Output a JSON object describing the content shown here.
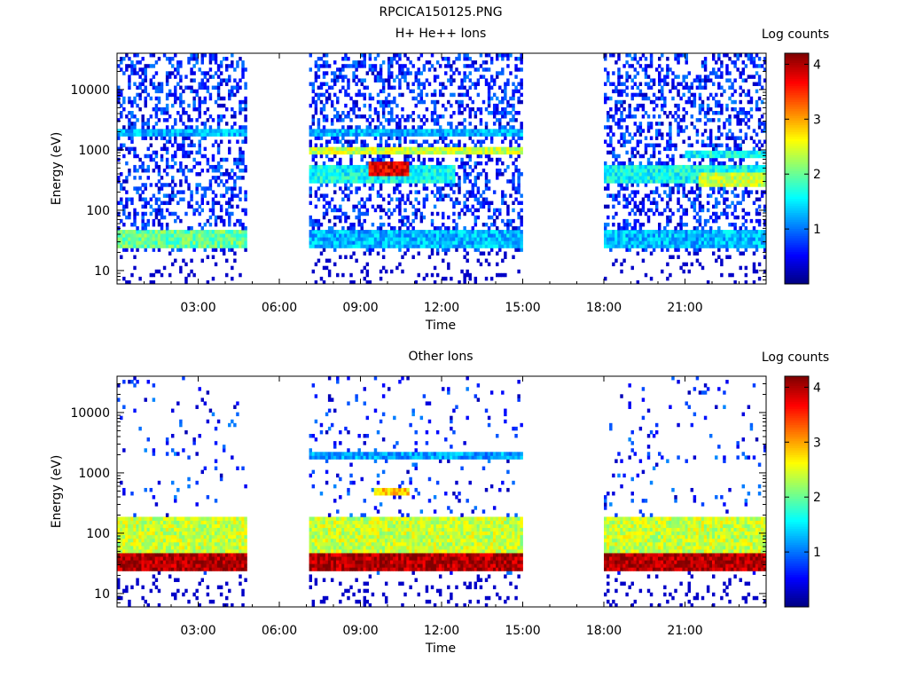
{
  "page_title": "RPCICA150125.PNG",
  "colorbar_stops": [
    "#00007f",
    "#0000ff",
    "#007fff",
    "#00ffff",
    "#7fff7f",
    "#ffff00",
    "#ff7f00",
    "#ff0000",
    "#7f0000"
  ],
  "chart_data": [
    {
      "type": "heatmap",
      "title": "H+ He++ Ions",
      "xlabel": "Time",
      "ylabel": "Energy (eV)",
      "yscale": "log",
      "xlim_hours": [
        0,
        24
      ],
      "ylim": [
        6,
        40000
      ],
      "x_ticks": [
        {
          "hour": 3,
          "label": "03:00"
        },
        {
          "hour": 6,
          "label": "06:00"
        },
        {
          "hour": 9,
          "label": "09:00"
        },
        {
          "hour": 12,
          "label": "12:00"
        },
        {
          "hour": 15,
          "label": "15:00"
        },
        {
          "hour": 18,
          "label": "18:00"
        },
        {
          "hour": 21,
          "label": "21:00"
        }
      ],
      "y_ticks": [
        {
          "value": 10,
          "label": "10"
        },
        {
          "value": 100,
          "label": "100"
        },
        {
          "value": 1000,
          "label": "1000"
        },
        {
          "value": 10000,
          "label": "10000"
        }
      ],
      "colorbar_label": "Log counts",
      "colorbar_ticks": [
        1,
        2,
        3,
        4
      ],
      "colorbar_range": [
        0,
        4.2
      ],
      "data_intervals_hours": [
        [
          0,
          4.8
        ],
        [
          7.1,
          15
        ],
        [
          18,
          24
        ]
      ],
      "features": [
        {
          "desc": "low-energy band",
          "energy_ev": [
            25,
            45
          ],
          "log_counts": 2.0,
          "intervals": [
            [
              0,
              4.8
            ]
          ]
        },
        {
          "desc": "low-energy band",
          "energy_ev": [
            25,
            45
          ],
          "log_counts": 1.3,
          "intervals": [
            [
              7.1,
              15
            ],
            [
              18,
              24
            ]
          ]
        },
        {
          "desc": "band",
          "energy_ev": [
            1800,
            2300
          ],
          "log_counts": 1.3,
          "intervals": [
            [
              0,
              4.8
            ],
            [
              7.1,
              15
            ]
          ]
        },
        {
          "desc": "band",
          "energy_ev": [
            800,
            1100
          ],
          "log_counts": 2.4,
          "intervals": [
            [
              7.1,
              15
            ]
          ]
        },
        {
          "desc": "peak",
          "energy_ev": [
            350,
            650
          ],
          "log_counts": 3.8,
          "intervals": [
            [
              9.3,
              10.8
            ]
          ]
        },
        {
          "desc": "band",
          "energy_ev": [
            300,
            600
          ],
          "log_counts": 1.6,
          "intervals": [
            [
              7.1,
              12.5
            ],
            [
              18,
              24
            ]
          ]
        },
        {
          "desc": "band",
          "energy_ev": [
            250,
            450
          ],
          "log_counts": 2.4,
          "intervals": [
            [
              21.5,
              24
            ]
          ]
        },
        {
          "desc": "band",
          "energy_ev": [
            750,
            1000
          ],
          "log_counts": 1.6,
          "intervals": [
            [
              21,
              24
            ]
          ]
        }
      ]
    },
    {
      "type": "heatmap",
      "title": "Other Ions",
      "xlabel": "Time",
      "ylabel": "Energy (eV)",
      "yscale": "log",
      "xlim_hours": [
        0,
        24
      ],
      "ylim": [
        6,
        40000
      ],
      "x_ticks": [
        {
          "hour": 3,
          "label": "03:00"
        },
        {
          "hour": 6,
          "label": "06:00"
        },
        {
          "hour": 9,
          "label": "09:00"
        },
        {
          "hour": 12,
          "label": "12:00"
        },
        {
          "hour": 15,
          "label": "15:00"
        },
        {
          "hour": 18,
          "label": "18:00"
        },
        {
          "hour": 21,
          "label": "21:00"
        }
      ],
      "y_ticks": [
        {
          "value": 10,
          "label": "10"
        },
        {
          "value": 100,
          "label": "100"
        },
        {
          "value": 1000,
          "label": "1000"
        },
        {
          "value": 10000,
          "label": "10000"
        }
      ],
      "colorbar_label": "Log counts",
      "colorbar_ticks": [
        1,
        2,
        3,
        4
      ],
      "colorbar_range": [
        0,
        4.2
      ],
      "data_intervals_hours": [
        [
          0,
          4.8
        ],
        [
          7.1,
          15
        ],
        [
          18,
          24
        ]
      ],
      "features": [
        {
          "desc": "main band",
          "energy_ev": [
            25,
            45
          ],
          "log_counts": 4.0,
          "intervals": [
            [
              0,
              4.8
            ],
            [
              7.1,
              15
            ],
            [
              18,
              24
            ]
          ]
        },
        {
          "desc": "broad band",
          "energy_ev": [
            45,
            200
          ],
          "log_counts": 2.4,
          "intervals": [
            [
              0,
              4.8
            ],
            [
              7.1,
              15
            ],
            [
              18,
              24
            ]
          ]
        },
        {
          "desc": "band",
          "energy_ev": [
            1800,
            2300
          ],
          "log_counts": 1.2,
          "intervals": [
            [
              7.1,
              15
            ]
          ]
        },
        {
          "desc": "peak",
          "energy_ev": [
            400,
            600
          ],
          "log_counts": 2.8,
          "intervals": [
            [
              9.5,
              10.8
            ]
          ]
        }
      ]
    }
  ]
}
